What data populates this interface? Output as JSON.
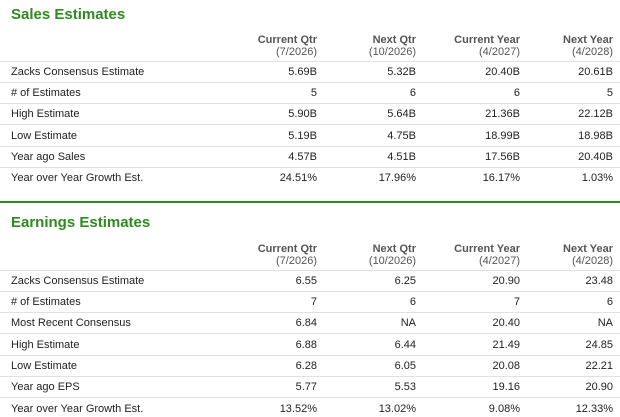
{
  "sales": {
    "title": "Sales Estimates",
    "columns": [
      {
        "label": "Current Qtr",
        "sub": "(7/2026)"
      },
      {
        "label": "Next Qtr",
        "sub": "(10/2026)"
      },
      {
        "label": "Current Year",
        "sub": "(4/2027)"
      },
      {
        "label": "Next Year",
        "sub": "(4/2028)"
      }
    ],
    "rows": [
      {
        "label": "Zacks Consensus Estimate",
        "values": [
          "5.69B",
          "5.32B",
          "20.40B",
          "20.61B"
        ]
      },
      {
        "label": "# of Estimates",
        "values": [
          "5",
          "6",
          "6",
          "5"
        ]
      },
      {
        "label": "High Estimate",
        "values": [
          "5.90B",
          "5.64B",
          "21.36B",
          "22.12B"
        ]
      },
      {
        "label": "Low Estimate",
        "values": [
          "5.19B",
          "4.75B",
          "18.99B",
          "18.98B"
        ]
      },
      {
        "label": "Year ago Sales",
        "values": [
          "4.57B",
          "4.51B",
          "17.56B",
          "20.40B"
        ]
      },
      {
        "label": "Year over Year Growth Est.",
        "values": [
          "24.51%",
          "17.96%",
          "16.17%",
          "1.03%"
        ]
      }
    ]
  },
  "earnings": {
    "title": "Earnings Estimates",
    "columns": [
      {
        "label": "Current Qtr",
        "sub": "(7/2026)"
      },
      {
        "label": "Next Qtr",
        "sub": "(10/2026)"
      },
      {
        "label": "Current Year",
        "sub": "(4/2027)"
      },
      {
        "label": "Next Year",
        "sub": "(4/2028)"
      }
    ],
    "rows": [
      {
        "label": "Zacks Consensus Estimate",
        "values": [
          "6.55",
          "6.25",
          "20.90",
          "23.48"
        ]
      },
      {
        "label": "# of Estimates",
        "values": [
          "7",
          "6",
          "7",
          "6"
        ]
      },
      {
        "label": "Most Recent Consensus",
        "values": [
          "6.84",
          "NA",
          "20.40",
          "NA"
        ]
      },
      {
        "label": "High Estimate",
        "values": [
          "6.88",
          "6.44",
          "21.49",
          "24.85"
        ]
      },
      {
        "label": "Low Estimate",
        "values": [
          "6.28",
          "6.05",
          "20.08",
          "22.21"
        ]
      },
      {
        "label": "Year ago EPS",
        "values": [
          "5.77",
          "5.53",
          "19.16",
          "20.90"
        ]
      },
      {
        "label": "Year over Year Growth Est.",
        "values": [
          "13.52%",
          "13.02%",
          "9.08%",
          "12.33%"
        ]
      }
    ]
  },
  "colors": {
    "accent_green": "#2e8b1f",
    "header_text": "#555555",
    "body_text": "#222222",
    "row_divider": "#e1e1e1"
  }
}
